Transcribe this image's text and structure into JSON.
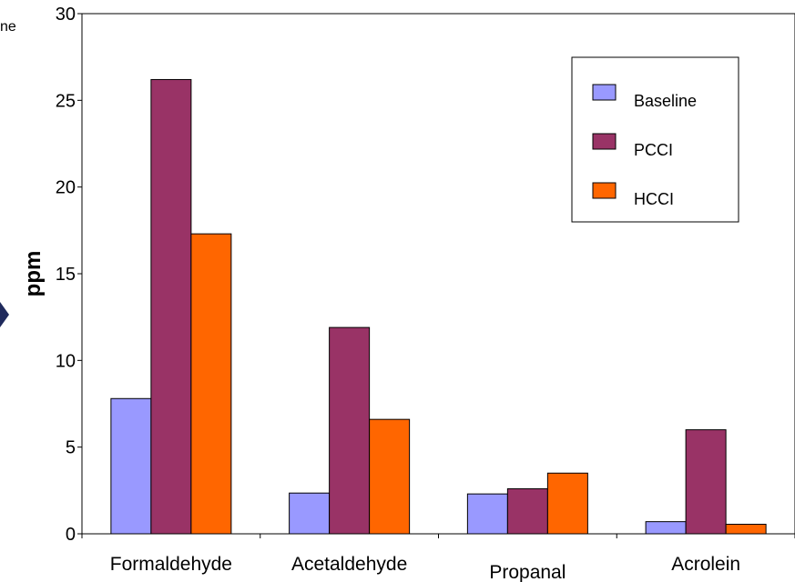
{
  "edge_fragment": "ne",
  "chart_data": {
    "type": "bar",
    "title": "",
    "xlabel": "",
    "ylabel": "ppm",
    "ylim": [
      0,
      30
    ],
    "yticks": [
      "0",
      "5",
      "10",
      "15",
      "20",
      "25",
      "30"
    ],
    "categories": [
      "Formaldehyde",
      "Acetaldehyde",
      "Propanal",
      "Acrolein"
    ],
    "series": [
      {
        "name": "Baseline",
        "color": "#9999ff",
        "values": [
          7.8,
          2.35,
          2.3,
          0.7
        ]
      },
      {
        "name": "PCCI",
        "color": "#993366",
        "values": [
          26.2,
          11.9,
          2.6,
          6.0
        ]
      },
      {
        "name": "HCCI",
        "color": "#ff6600",
        "values": [
          17.3,
          6.6,
          3.5,
          0.55
        ]
      }
    ],
    "grid": false,
    "legend_position": "top-right"
  }
}
